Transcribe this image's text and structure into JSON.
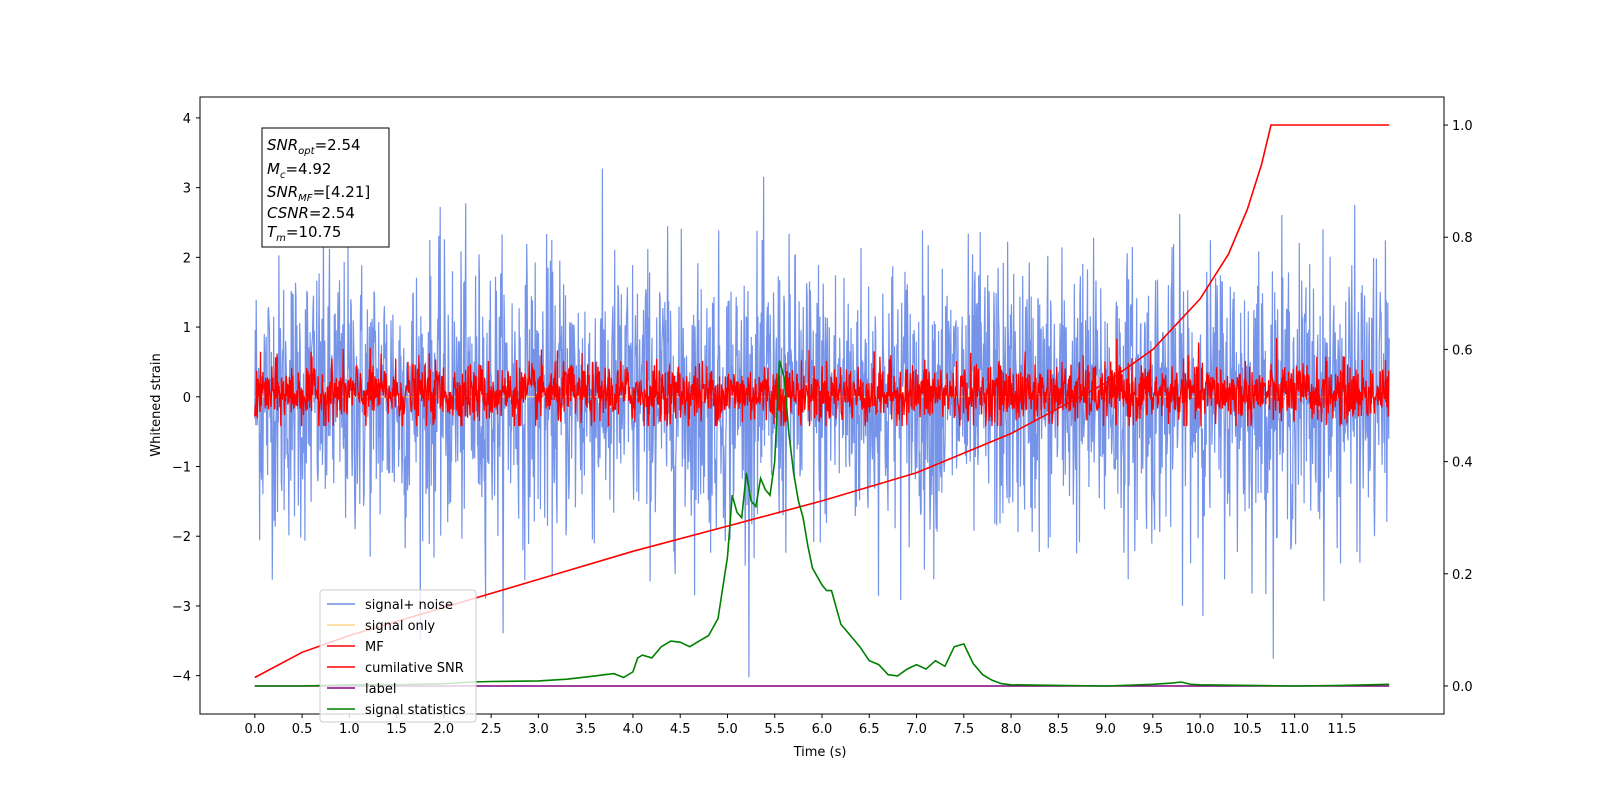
{
  "chart_data": {
    "type": "line",
    "xlabel": "Time (s)",
    "ylabel": "Whitened strain",
    "xlim": [
      -0.58,
      12.58
    ],
    "ylim": [
      -4.55,
      4.3
    ],
    "y2lim": [
      -0.05,
      1.05
    ],
    "x_ticks": [
      "0.0",
      "0.5",
      "1.0",
      "1.5",
      "2.0",
      "2.5",
      "3.0",
      "3.5",
      "4.0",
      "4.5",
      "5.0",
      "5.5",
      "6.0",
      "6.5",
      "7.0",
      "7.5",
      "8.0",
      "8.5",
      "9.0",
      "9.5",
      "10.0",
      "10.5",
      "11.0",
      "11.5"
    ],
    "y_ticks": [
      "−4",
      "−3",
      "−2",
      "−1",
      "0",
      "1",
      "2",
      "3",
      "4"
    ],
    "y2_ticks": [
      "0.0",
      "0.2",
      "0.4",
      "0.6",
      "0.8",
      "1.0"
    ],
    "annotation": {
      "snr_opt": "=2.54",
      "mc": "=4.92",
      "snr_mf": "=[4.21]",
      "csnr": "=2.54",
      "tm": "=10.75"
    },
    "legend_position": "lower-left",
    "series": [
      {
        "name": "signal+ noise",
        "color": "#6e8ee8",
        "axis": "left",
        "kind": "noise",
        "x_range": [
          0,
          12.0
        ],
        "center": 0,
        "sd": 1.0,
        "max": 3.9,
        "min": -4.1
      },
      {
        "name": "signal only",
        "color": "#fdd687",
        "axis": "left",
        "kind": "flat",
        "value": 0
      },
      {
        "name": "MF",
        "color": "#ff0000",
        "axis": "left",
        "kind": "noise",
        "x_range": [
          0,
          12.0
        ],
        "center": 0.05,
        "sd": 0.22,
        "max": 0.95,
        "min": -0.42
      },
      {
        "name": "cumilative SNR",
        "color": "#ff0000",
        "axis": "right",
        "x": [
          0.0,
          0.5,
          1.0,
          2.0,
          3.0,
          4.0,
          5.0,
          6.0,
          7.0,
          8.0,
          9.0,
          9.5,
          10.0,
          10.3,
          10.5,
          10.65,
          10.75,
          11.5,
          12.0
        ],
        "y": [
          0.015,
          0.06,
          0.09,
          0.14,
          0.19,
          0.24,
          0.285,
          0.33,
          0.38,
          0.45,
          0.54,
          0.6,
          0.69,
          0.77,
          0.85,
          0.93,
          1.0,
          1.0,
          1.0
        ]
      },
      {
        "name": "label",
        "color": "#800080",
        "axis": "right",
        "x": [
          0.0,
          12.0
        ],
        "y": [
          0.0,
          0.0
        ]
      },
      {
        "name": "signal statistics",
        "color": "#008000",
        "axis": "right",
        "x": [
          0.0,
          0.5,
          1.0,
          1.5,
          2.0,
          2.3,
          2.5,
          3.0,
          3.3,
          3.6,
          3.7,
          3.8,
          3.9,
          4.0,
          4.05,
          4.1,
          4.2,
          4.3,
          4.4,
          4.5,
          4.6,
          4.7,
          4.8,
          4.9,
          5.0,
          5.05,
          5.1,
          5.15,
          5.2,
          5.25,
          5.3,
          5.35,
          5.4,
          5.45,
          5.5,
          5.55,
          5.6,
          5.65,
          5.7,
          5.75,
          5.8,
          5.85,
          5.9,
          6.0,
          6.05,
          6.1,
          6.2,
          6.3,
          6.4,
          6.5,
          6.6,
          6.7,
          6.8,
          6.9,
          7.0,
          7.1,
          7.2,
          7.3,
          7.4,
          7.5,
          7.6,
          7.7,
          7.8,
          7.9,
          8.0,
          8.5,
          9.0,
          9.5,
          9.7,
          9.8,
          9.9,
          10.0,
          10.5,
          11.0,
          11.5,
          12.0
        ],
        "y": [
          0.0,
          0.0,
          0.002,
          0.002,
          0.004,
          0.007,
          0.008,
          0.009,
          0.012,
          0.018,
          0.02,
          0.022,
          0.015,
          0.025,
          0.05,
          0.055,
          0.05,
          0.07,
          0.08,
          0.078,
          0.07,
          0.08,
          0.09,
          0.12,
          0.23,
          0.34,
          0.31,
          0.3,
          0.38,
          0.33,
          0.32,
          0.37,
          0.35,
          0.34,
          0.4,
          0.58,
          0.55,
          0.45,
          0.38,
          0.33,
          0.3,
          0.25,
          0.21,
          0.18,
          0.17,
          0.17,
          0.11,
          0.09,
          0.07,
          0.045,
          0.038,
          0.02,
          0.018,
          0.03,
          0.038,
          0.03,
          0.045,
          0.035,
          0.07,
          0.075,
          0.04,
          0.02,
          0.01,
          0.004,
          0.002,
          0.001,
          0.0,
          0.003,
          0.005,
          0.007,
          0.003,
          0.002,
          0.001,
          0.0,
          0.001,
          0.003
        ]
      }
    ]
  }
}
